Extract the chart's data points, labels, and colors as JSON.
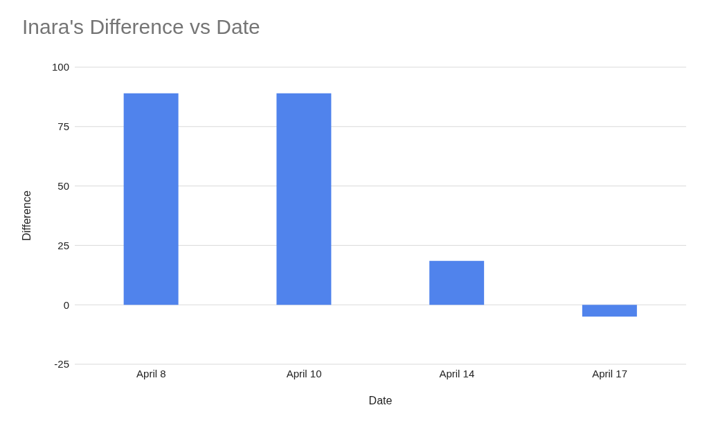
{
  "chart_data": {
    "type": "bar",
    "title": "Inara's Difference vs Date",
    "xlabel": "Date",
    "ylabel": "Difference",
    "categories": [
      "April 8",
      "April 10",
      "April 14",
      "April 17"
    ],
    "values": [
      89,
      89,
      18.5,
      -5
    ],
    "color": "#5083ec",
    "ylim": [
      -25,
      100
    ],
    "yticks": [
      -25,
      0,
      25,
      50,
      75,
      100
    ],
    "grid": "y"
  }
}
